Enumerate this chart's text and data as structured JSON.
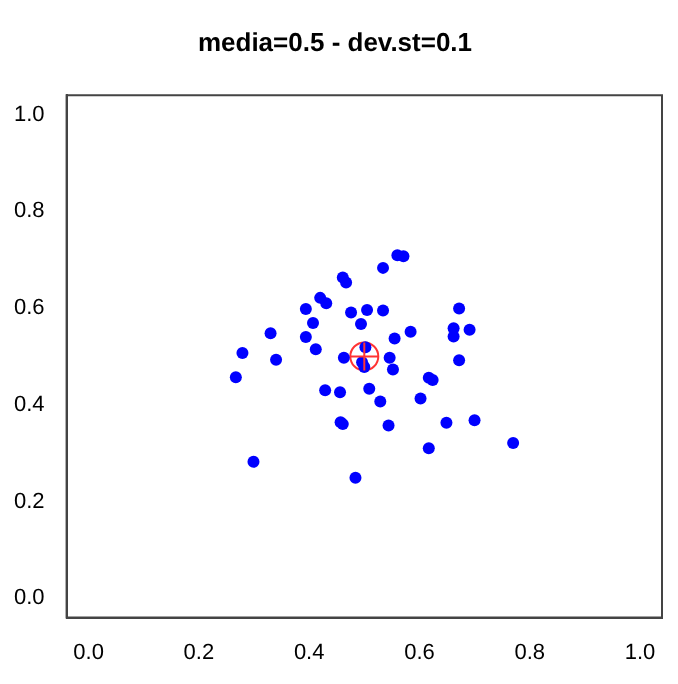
{
  "chart_data": {
    "type": "scatter",
    "title": "media=0.5 - dev.st=0.1",
    "xlim": [
      -0.04,
      1.04
    ],
    "ylim": [
      -0.04,
      1.04
    ],
    "xticks": [
      {
        "value": 0,
        "label": "0.0"
      },
      {
        "value": 0.2,
        "label": "0.2"
      },
      {
        "value": 0.4,
        "label": "0.4"
      },
      {
        "value": 0.6,
        "label": "0.6"
      },
      {
        "value": 0.8,
        "label": "0.8"
      },
      {
        "value": 1,
        "label": "1.0"
      }
    ],
    "yticks": [
      {
        "value": 0,
        "label": "0.0"
      },
      {
        "value": 0.2,
        "label": "0.2"
      },
      {
        "value": 0.4,
        "label": "0.4"
      },
      {
        "value": 0.6,
        "label": "0.6"
      },
      {
        "value": 0.8,
        "label": "0.8"
      },
      {
        "value": 1,
        "label": "1.0"
      }
    ],
    "grid": false,
    "legend": false,
    "marker": "circle",
    "series": [
      {
        "color": "#0000ff",
        "x": [
          0.267,
          0.279,
          0.299,
          0.33,
          0.34,
          0.394,
          0.394,
          0.407,
          0.412,
          0.42,
          0.431,
          0.429,
          0.461,
          0.467,
          0.456,
          0.457,
          0.461,
          0.463,
          0.476,
          0.494,
          0.505,
          0.484,
          0.496,
          0.502,
          0.5,
          0.509,
          0.529,
          0.534,
          0.534,
          0.546,
          0.544,
          0.552,
          0.555,
          0.56,
          0.571,
          0.584,
          0.602,
          0.617,
          0.624,
          0.617,
          0.649,
          0.662,
          0.662,
          0.672,
          0.672,
          0.691,
          0.7,
          0.77
        ],
        "values": [
          0.457,
          0.507,
          0.282,
          0.548,
          0.493,
          0.598,
          0.54,
          0.569,
          0.515,
          0.621,
          0.61,
          0.43,
          0.663,
          0.653,
          0.426,
          0.364,
          0.36,
          0.497,
          0.591,
          0.567,
          0.596,
          0.249,
          0.488,
          0.519,
          0.478,
          0.433,
          0.407,
          0.595,
          0.683,
          0.497,
          0.357,
          0.473,
          0.537,
          0.709,
          0.707,
          0.551,
          0.413,
          0.456,
          0.451,
          0.31,
          0.363,
          0.558,
          0.541,
          0.599,
          0.492,
          0.555,
          0.368,
          0.321
        ]
      },
      {
        "color": "#ff3333",
        "marker": "circle-plus",
        "x": [
          0.5
        ],
        "values": [
          0.5
        ]
      }
    ]
  }
}
